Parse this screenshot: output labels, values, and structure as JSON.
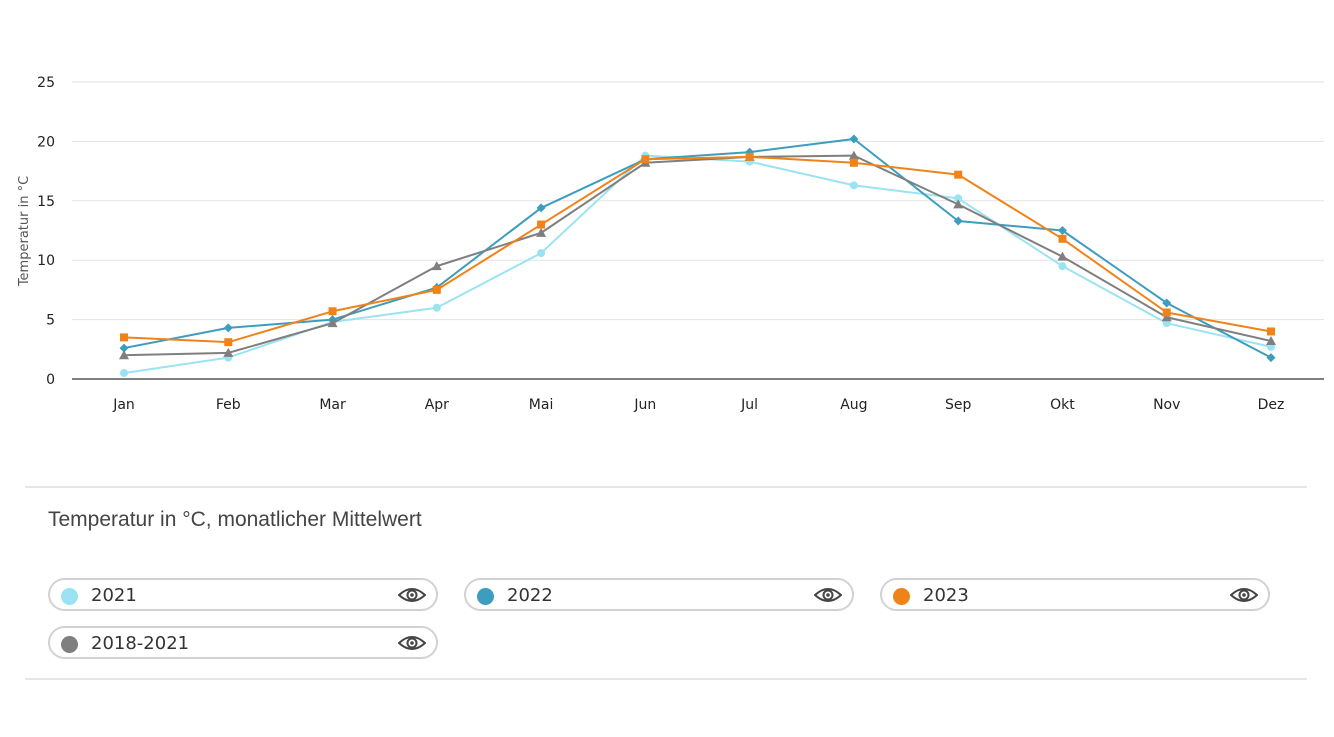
{
  "chart_data": {
    "type": "line",
    "ylabel": "Temperatur in °C",
    "ylim": [
      0,
      25
    ],
    "yticks": [
      0,
      5,
      10,
      15,
      20,
      25
    ],
    "categories": [
      "Jan",
      "Feb",
      "Mar",
      "Apr",
      "Mai",
      "Jun",
      "Jul",
      "Aug",
      "Sep",
      "Okt",
      "Nov",
      "Dez"
    ],
    "grid": true,
    "series": [
      {
        "name": "2021",
        "color": "#9be3f2",
        "marker": "circle",
        "values": [
          0.5,
          1.8,
          4.8,
          6.0,
          10.6,
          18.8,
          18.3,
          16.3,
          15.2,
          9.5,
          4.7,
          2.7
        ]
      },
      {
        "name": "2022",
        "color": "#3d9dbf",
        "marker": "diamond",
        "values": [
          2.6,
          4.3,
          5.0,
          7.7,
          14.4,
          18.5,
          19.1,
          20.2,
          13.3,
          12.5,
          6.4,
          1.8
        ]
      },
      {
        "name": "2018-2021",
        "color": "#7f7f7f",
        "marker": "triangle",
        "values": [
          2.0,
          2.2,
          4.7,
          9.5,
          12.3,
          18.2,
          18.7,
          18.8,
          14.7,
          10.3,
          5.2,
          3.2
        ]
      },
      {
        "name": "2023",
        "color": "#f08318",
        "marker": "square",
        "values": [
          3.5,
          3.1,
          5.7,
          7.5,
          13.0,
          18.5,
          18.7,
          18.2,
          17.2,
          11.8,
          5.6,
          4.0
        ]
      }
    ]
  },
  "caption": "Temperatur in °C, monatlicher Mittelwert",
  "legend": [
    {
      "label": "2021",
      "color": "#9be3f2",
      "icon": "eye-icon"
    },
    {
      "label": "2022",
      "color": "#3d9dbf",
      "icon": "eye-icon"
    },
    {
      "label": "2023",
      "color": "#f08318",
      "icon": "eye-icon"
    },
    {
      "label": "2018-2021",
      "color": "#7f7f7f",
      "icon": "eye-icon"
    }
  ]
}
